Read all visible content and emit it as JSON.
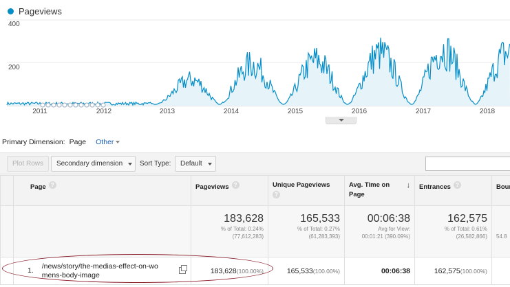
{
  "chart": {
    "legend_label": "Pageviews",
    "colors": {
      "series": "#058dc7",
      "fill": "#e6f4fa"
    },
    "y_ticks": [
      "400",
      "200"
    ],
    "x_ticks": [
      "2011",
      "2012",
      "2013",
      "2014",
      "2015",
      "2016",
      "2017",
      "2018"
    ]
  },
  "chart_data": {
    "type": "area",
    "title": "",
    "series": [
      {
        "name": "Pageviews",
        "values_approx_peaks_by_year": [
          40,
          60,
          110,
          250,
          270,
          310,
          360,
          330
        ]
      }
    ],
    "categories": [
      "2011",
      "2012",
      "2013",
      "2014",
      "2015",
      "2016",
      "2017",
      "2018"
    ],
    "ylim": [
      0,
      400
    ],
    "grid": true,
    "legend": "top-left"
  },
  "primary_dimension": {
    "label": "Primary Dimension:",
    "selected": "Page",
    "other": "Other"
  },
  "toolbar": {
    "plot_rows": "Plot Rows",
    "secondary_dimension": "Secondary dimension",
    "sort_type_label": "Sort Type:",
    "sort_type_value": "Default"
  },
  "table": {
    "headers": {
      "page": "Page",
      "pageviews": "Pageviews",
      "unique_pageviews": "Unique Pageviews",
      "avg_time": "Avg. Time on Page",
      "entrances": "Entrances",
      "bounce": "Boun"
    },
    "totals": {
      "pageviews": {
        "value": "183,628",
        "line1": "% of Total: 0.24%",
        "line2": "(77,612,283)"
      },
      "unique_pageviews": {
        "value": "165,533",
        "line1": "% of Total: 0.27%",
        "line2": "(61,283,393)"
      },
      "avg_time": {
        "value": "00:06:38",
        "line1": "Avg for View:",
        "line2": "00:01:21 (390.09%)"
      },
      "entrances": {
        "value": "162,575",
        "line1": "% of Total: 0.61%",
        "line2": "(26,582,866)"
      },
      "bounce": {
        "value": "",
        "line1": "",
        "line2": "54.8"
      }
    },
    "rows": [
      {
        "index": "1.",
        "page": "/news/story/the-medias-effect-on-womens-body-image",
        "page_line1": "/news/story/the-medias-effect-on-wo",
        "page_line2": "mens-body-image",
        "pageviews": "183,628",
        "pageviews_pct": "(100.00%)",
        "unique_pageviews": "165,533",
        "unique_pageviews_pct": "(100.00%)",
        "avg_time": "00:06:38",
        "entrances": "162,575",
        "entrances_pct": "(100.00%)"
      }
    ]
  }
}
